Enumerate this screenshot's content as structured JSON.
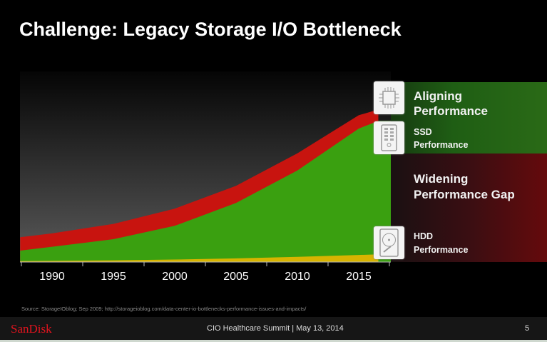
{
  "slide": {
    "title": "Challenge: Legacy Storage I/O Bottleneck",
    "page_number": "5"
  },
  "chart_data": {
    "type": "area",
    "title": "",
    "xlabel": "",
    "ylabel": "",
    "x_ticks": [
      "1990",
      "1995",
      "2000",
      "2005",
      "2010",
      "2015"
    ],
    "x": [
      1987.4,
      1990,
      1995,
      2000,
      2005,
      2010,
      2015,
      2016.6
    ],
    "ylim": [
      0,
      100
    ],
    "series": [
      {
        "name": "CPU Performance",
        "color": "#c8140f",
        "values": [
          13,
          15,
          20,
          28,
          40,
          57,
          77,
          80
        ]
      },
      {
        "name": "SSD Performance",
        "color": "#3aa010",
        "values": [
          6,
          8,
          12,
          19,
          31,
          48,
          70,
          74
        ]
      },
      {
        "name": "HDD Performance",
        "color": "#d8b400",
        "values": [
          0.5,
          0.6,
          0.9,
          1.3,
          1.9,
          2.7,
          3.7,
          4
        ]
      }
    ]
  },
  "labels": {
    "aligning": "Aligning Performance",
    "ssd_line1": "SSD",
    "ssd_line2": "Performance",
    "widening_line1": "Widening",
    "widening_line2": "Performance Gap",
    "hdd_line1": "HDD",
    "hdd_line2": "Performance"
  },
  "icons": [
    "cpu-chip-icon",
    "ssd-drive-icon",
    "hdd-drive-icon"
  ],
  "source": "Source: StorageIOblog; Sep 2009; http://storageioblog.com/data-center-io-bottlenecks-performance-issues-and-impacts/",
  "footer": {
    "logo": "SanDisk",
    "event": "CIO Healthcare Summit |  May 13, 2014"
  }
}
